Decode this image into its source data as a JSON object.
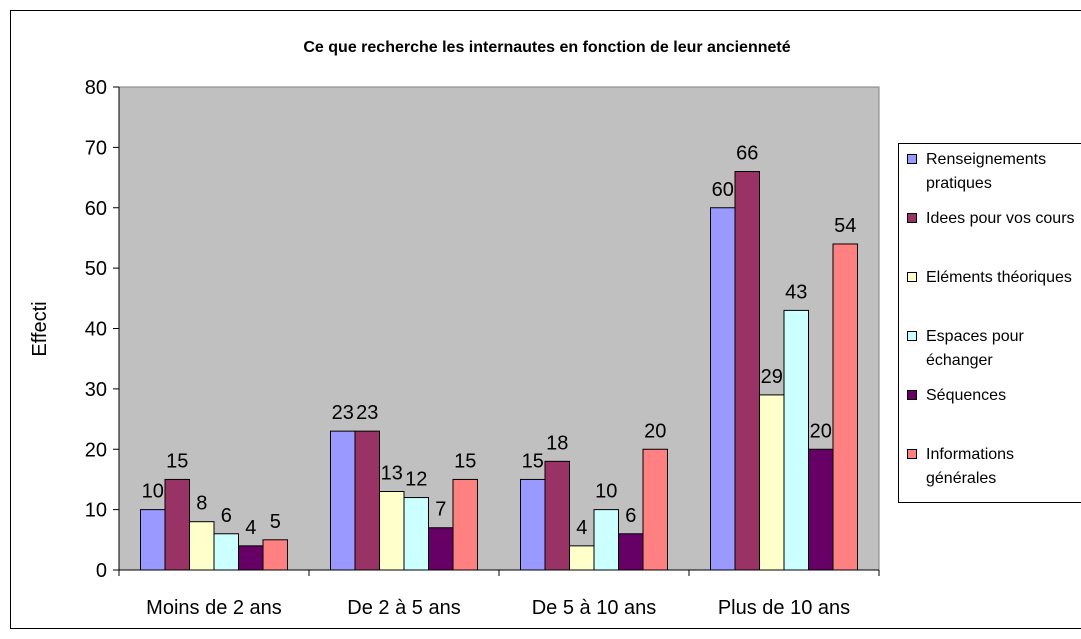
{
  "chart_data": {
    "type": "bar",
    "title": "Ce que recherche les internautes en fonction de leur ancienneté",
    "y_label": "Effecti",
    "categories": [
      "Moins de 2 ans",
      "De 2 à 5 ans",
      "De 5 à 10 ans",
      "Plus de 10 ans"
    ],
    "series": [
      {
        "name": "Renseignements pratiques",
        "color": "#9999ff",
        "values": [
          10,
          23,
          15,
          60
        ]
      },
      {
        "name": "Idees pour vos cours",
        "color": "#993366",
        "values": [
          15,
          23,
          18,
          66
        ]
      },
      {
        "name": "Eléments théoriques",
        "color": "#ffffcc",
        "values": [
          8,
          13,
          4,
          29
        ]
      },
      {
        "name": "Espaces pour échanger",
        "color": "#ccffff",
        "values": [
          6,
          12,
          10,
          43
        ]
      },
      {
        "name": "Séquences",
        "color": "#660066",
        "values": [
          4,
          7,
          6,
          20
        ]
      },
      {
        "name": "Informations générales",
        "color": "#ff8080",
        "values": [
          5,
          15,
          20,
          54
        ]
      }
    ],
    "ylim": [
      0,
      80
    ],
    "yticks": [
      0,
      10,
      20,
      30,
      40,
      50,
      60,
      70,
      80
    ],
    "plot_background": "#c0c0c0",
    "legend": "right"
  }
}
